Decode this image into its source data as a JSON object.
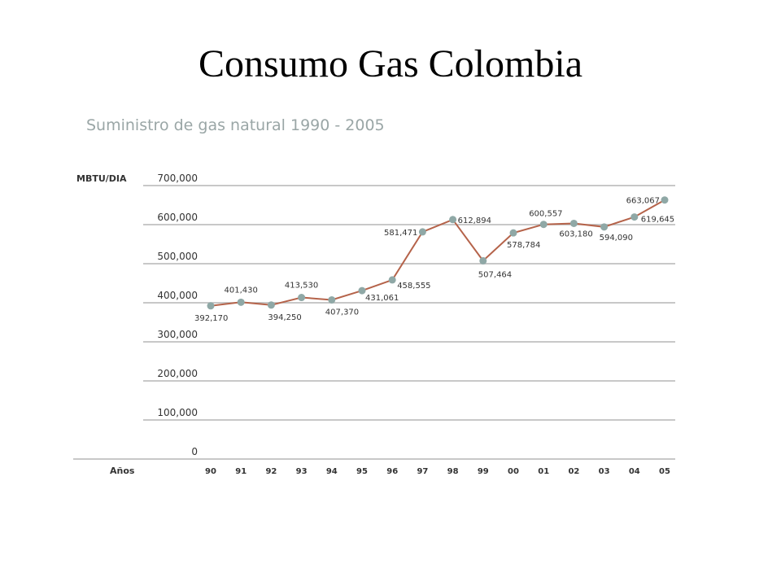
{
  "slide": {
    "title": "Consumo Gas Colombia"
  },
  "chart_data": {
    "type": "line",
    "title": "Suministro de gas natural 1990 - 2005",
    "ylabel": "MBTU/DIA",
    "xlabel": "Años",
    "ylim": [
      0,
      700000
    ],
    "yticks": [
      "0",
      "100,000",
      "200,000",
      "300,000",
      "400,000",
      "500,000",
      "600,000",
      "700,000"
    ],
    "categories": [
      "90",
      "91",
      "92",
      "93",
      "94",
      "95",
      "96",
      "97",
      "98",
      "99",
      "00",
      "01",
      "02",
      "03",
      "04",
      "05"
    ],
    "values": [
      392170,
      401430,
      394250,
      413530,
      407370,
      431061,
      458555,
      581471,
      612894,
      507464,
      578784,
      600557,
      603180,
      594090,
      619645,
      663067
    ],
    "data_labels": [
      "392,170",
      "401,430",
      "394,250",
      "413,530",
      "407,370",
      "431,061",
      "458,555",
      "581,471",
      "612,894",
      "507,464",
      "578,784",
      "600,557",
      "603,180",
      "594,090",
      "619,645",
      "663,067"
    ],
    "grid": true,
    "colors": {
      "line": "#b5634a",
      "marker": "#8fa8a6",
      "grid": "#b5b5b5",
      "title": "#9aa6a6"
    }
  }
}
